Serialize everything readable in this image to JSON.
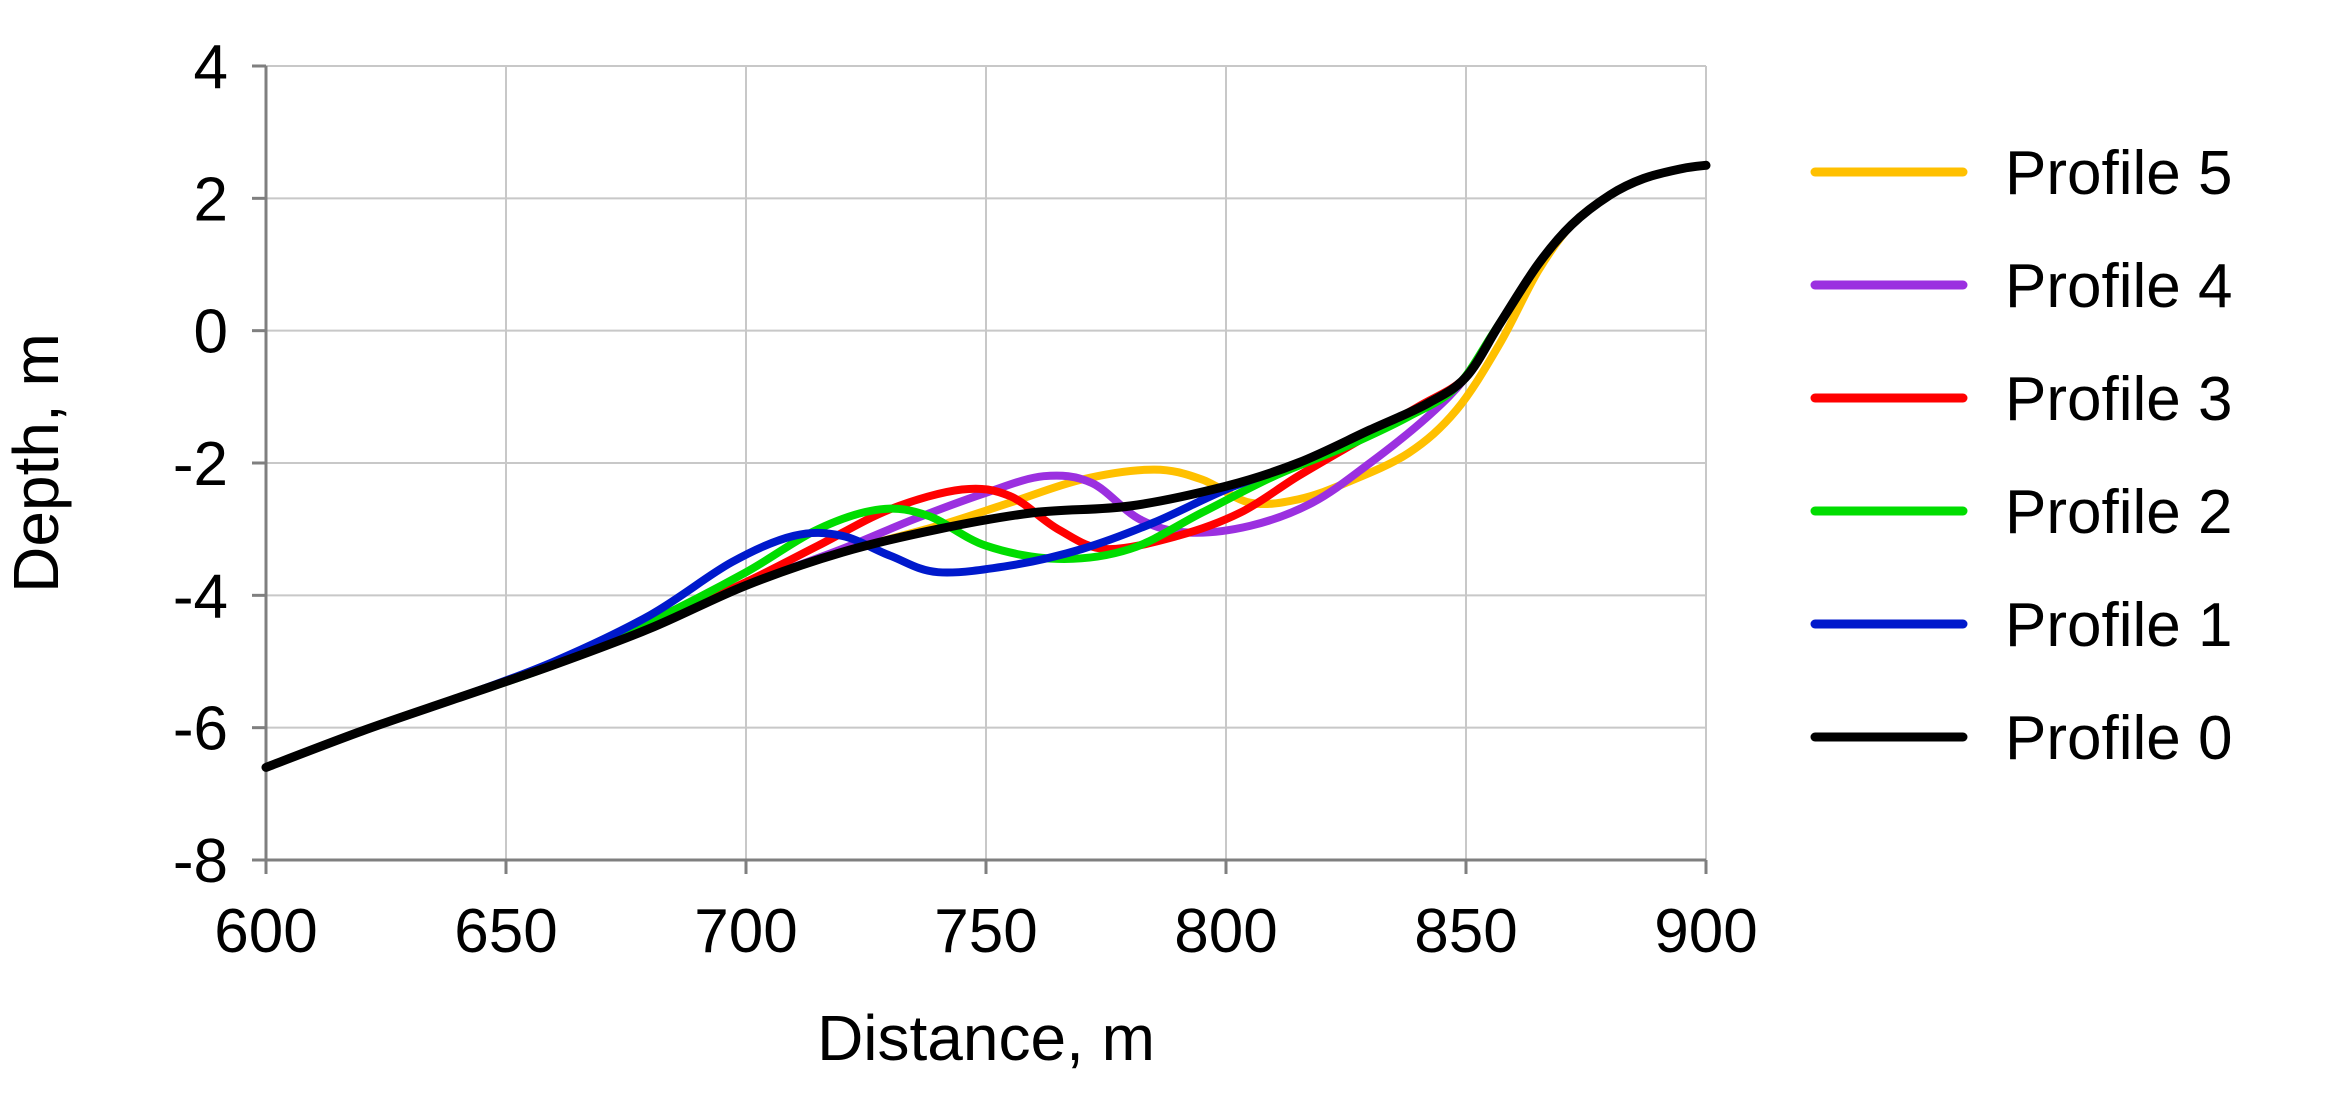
{
  "chart_data": {
    "type": "line",
    "xlabel": "Distance, m",
    "ylabel": "Depth, m",
    "xlim": [
      600,
      900
    ],
    "ylim": [
      -8,
      4
    ],
    "x_ticks": [
      600,
      650,
      700,
      750,
      800,
      850,
      900
    ],
    "y_ticks": [
      -8,
      -6,
      -4,
      -2,
      0,
      2,
      4
    ],
    "grid": true,
    "legend_position": "right",
    "series": [
      {
        "name": "Profile 5",
        "color": "#FFC000",
        "points": [
          [
            600,
            -6.6
          ],
          [
            620,
            -6.05
          ],
          [
            640,
            -5.55
          ],
          [
            660,
            -5.05
          ],
          [
            680,
            -4.5
          ],
          [
            700,
            -3.85
          ],
          [
            720,
            -3.35
          ],
          [
            740,
            -2.95
          ],
          [
            755,
            -2.6
          ],
          [
            770,
            -2.25
          ],
          [
            785,
            -2.1
          ],
          [
            795,
            -2.25
          ],
          [
            805,
            -2.6
          ],
          [
            815,
            -2.55
          ],
          [
            825,
            -2.3
          ],
          [
            838,
            -1.85
          ],
          [
            848,
            -1.2
          ],
          [
            857,
            -0.2
          ],
          [
            865,
            0.9
          ],
          [
            872,
            1.6
          ],
          [
            880,
            2.05
          ],
          [
            887,
            2.3
          ],
          [
            895,
            2.45
          ],
          [
            900,
            2.5
          ]
        ]
      },
      {
        "name": "Profile 4",
        "color": "#9B30E0",
        "points": [
          [
            600,
            -6.6
          ],
          [
            620,
            -6.05
          ],
          [
            640,
            -5.55
          ],
          [
            660,
            -5.05
          ],
          [
            680,
            -4.5
          ],
          [
            700,
            -3.85
          ],
          [
            720,
            -3.3
          ],
          [
            735,
            -2.85
          ],
          [
            750,
            -2.45
          ],
          [
            762,
            -2.2
          ],
          [
            772,
            -2.3
          ],
          [
            782,
            -2.85
          ],
          [
            792,
            -3.05
          ],
          [
            805,
            -2.95
          ],
          [
            818,
            -2.6
          ],
          [
            830,
            -2.0
          ],
          [
            842,
            -1.3
          ],
          [
            850,
            -0.7
          ],
          [
            857,
            0.1
          ],
          [
            865,
            1.0
          ],
          [
            872,
            1.6
          ],
          [
            880,
            2.05
          ],
          [
            887,
            2.3
          ],
          [
            895,
            2.45
          ],
          [
            900,
            2.5
          ]
        ]
      },
      {
        "name": "Profile 3",
        "color": "#FF0000",
        "points": [
          [
            600,
            -6.6
          ],
          [
            620,
            -6.05
          ],
          [
            640,
            -5.55
          ],
          [
            660,
            -5.05
          ],
          [
            680,
            -4.45
          ],
          [
            700,
            -3.8
          ],
          [
            715,
            -3.25
          ],
          [
            730,
            -2.7
          ],
          [
            745,
            -2.4
          ],
          [
            755,
            -2.5
          ],
          [
            765,
            -3.0
          ],
          [
            775,
            -3.3
          ],
          [
            790,
            -3.1
          ],
          [
            803,
            -2.75
          ],
          [
            815,
            -2.2
          ],
          [
            828,
            -1.65
          ],
          [
            840,
            -1.15
          ],
          [
            850,
            -0.7
          ],
          [
            857,
            0.1
          ],
          [
            865,
            1.0
          ],
          [
            872,
            1.6
          ],
          [
            880,
            2.05
          ],
          [
            887,
            2.3
          ],
          [
            895,
            2.45
          ],
          [
            900,
            2.5
          ]
        ]
      },
      {
        "name": "Profile 2",
        "color": "#00DD00",
        "points": [
          [
            600,
            -6.6
          ],
          [
            620,
            -6.05
          ],
          [
            640,
            -5.55
          ],
          [
            660,
            -5.05
          ],
          [
            680,
            -4.4
          ],
          [
            700,
            -3.65
          ],
          [
            715,
            -3.0
          ],
          [
            728,
            -2.7
          ],
          [
            738,
            -2.8
          ],
          [
            750,
            -3.25
          ],
          [
            765,
            -3.45
          ],
          [
            780,
            -3.3
          ],
          [
            795,
            -2.75
          ],
          [
            810,
            -2.2
          ],
          [
            825,
            -1.75
          ],
          [
            838,
            -1.3
          ],
          [
            848,
            -0.85
          ],
          [
            856,
            0.0
          ],
          [
            865,
            1.0
          ],
          [
            872,
            1.6
          ],
          [
            880,
            2.05
          ],
          [
            887,
            2.3
          ],
          [
            895,
            2.45
          ],
          [
            900,
            2.5
          ]
        ]
      },
      {
        "name": "Profile 1",
        "color": "#0019CC",
        "points": [
          [
            600,
            -6.6
          ],
          [
            620,
            -6.05
          ],
          [
            640,
            -5.55
          ],
          [
            660,
            -5.0
          ],
          [
            680,
            -4.3
          ],
          [
            697,
            -3.5
          ],
          [
            710,
            -3.1
          ],
          [
            720,
            -3.1
          ],
          [
            730,
            -3.4
          ],
          [
            740,
            -3.65
          ],
          [
            755,
            -3.55
          ],
          [
            770,
            -3.3
          ],
          [
            785,
            -2.9
          ],
          [
            800,
            -2.4
          ],
          [
            815,
            -2.0
          ],
          [
            830,
            -1.5
          ],
          [
            842,
            -1.1
          ],
          [
            850,
            -0.7
          ],
          [
            857,
            0.1
          ],
          [
            865,
            1.0
          ],
          [
            872,
            1.6
          ],
          [
            880,
            2.05
          ],
          [
            887,
            2.3
          ],
          [
            895,
            2.45
          ],
          [
            900,
            2.5
          ]
        ]
      },
      {
        "name": "Profile 0",
        "color": "#000000",
        "points": [
          [
            600,
            -6.6
          ],
          [
            620,
            -6.05
          ],
          [
            640,
            -5.55
          ],
          [
            660,
            -5.05
          ],
          [
            680,
            -4.5
          ],
          [
            700,
            -3.85
          ],
          [
            720,
            -3.35
          ],
          [
            740,
            -3.0
          ],
          [
            760,
            -2.75
          ],
          [
            780,
            -2.65
          ],
          [
            800,
            -2.35
          ],
          [
            815,
            -2.0
          ],
          [
            830,
            -1.5
          ],
          [
            842,
            -1.1
          ],
          [
            850,
            -0.7
          ],
          [
            857,
            0.1
          ],
          [
            865,
            1.0
          ],
          [
            872,
            1.6
          ],
          [
            880,
            2.05
          ],
          [
            887,
            2.3
          ],
          [
            895,
            2.45
          ],
          [
            900,
            2.5
          ]
        ]
      }
    ]
  }
}
